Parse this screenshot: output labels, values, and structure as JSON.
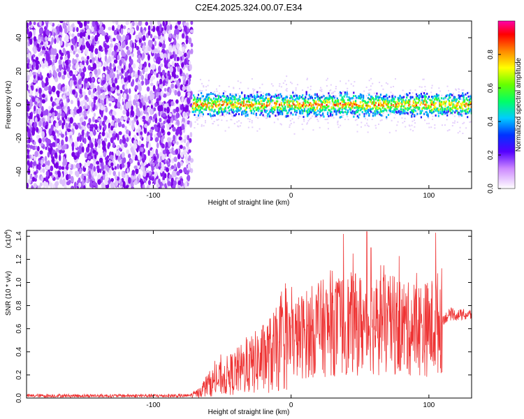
{
  "chart_data": [
    {
      "type": "heatmap",
      "title": "C2E4.2025.324.00.07.E34",
      "xlabel": "Height of straight line (km)",
      "ylabel": "Frequency (Hz)",
      "xlim": [
        -192,
        131
      ],
      "ylim": [
        -50,
        50
      ],
      "xticks": [
        -100,
        0,
        100
      ],
      "yticks": [
        -40,
        -20,
        0,
        20,
        40
      ],
      "colorbar": {
        "label": "Normalized spectral amplitude",
        "range": [
          0,
          1
        ],
        "ticks": [
          0.0,
          0.2,
          0.4,
          0.6,
          0.8
        ],
        "tick_labels": [
          "0.0",
          "0.2",
          "0.4",
          "0.6",
          "0.8"
        ]
      },
      "noise_region_x": [
        -192,
        -72
      ],
      "signal_start_x": -72,
      "signal_center_freq": 0,
      "signal_halfwidth_hz": 6
    },
    {
      "type": "line",
      "xlabel": "Height of straight line (km)",
      "ylabel": "SNR (10 * v/v)",
      "scale_label": "(x10",
      "scale_exp": "4",
      "scale_close": ")",
      "xlim": [
        -192,
        131
      ],
      "ylim": [
        0,
        1.45
      ],
      "xticks": [
        -100,
        0,
        100
      ],
      "yticks": [
        0.0,
        0.2,
        0.4,
        0.6,
        0.8,
        1.0,
        1.2,
        1.4
      ],
      "ytick_labels": [
        "0.0",
        "0.2",
        "0.4",
        "0.6",
        "0.8",
        "1.0",
        "1.2",
        "1.4"
      ],
      "color": "#ee3333",
      "trend": [
        {
          "x": -192,
          "y": 0.02
        },
        {
          "x": -75,
          "y": 0.02
        },
        {
          "x": -68,
          "y": 0.04
        },
        {
          "x": -60,
          "y": 0.12
        },
        {
          "x": -45,
          "y": 0.2
        },
        {
          "x": -30,
          "y": 0.28
        },
        {
          "x": -15,
          "y": 0.38
        },
        {
          "x": 0,
          "y": 0.5
        },
        {
          "x": 20,
          "y": 0.6
        },
        {
          "x": 40,
          "y": 0.64
        },
        {
          "x": 60,
          "y": 0.64
        },
        {
          "x": 80,
          "y": 0.62
        },
        {
          "x": 100,
          "y": 0.6
        },
        {
          "x": 115,
          "y": 0.72
        },
        {
          "x": 131,
          "y": 0.72
        }
      ],
      "peaks": [
        {
          "x": 38,
          "y": 1.42
        },
        {
          "x": 55,
          "y": 1.44
        },
        {
          "x": 58,
          "y": 1.3
        },
        {
          "x": 105,
          "y": 1.43
        },
        {
          "x": 65,
          "y": 1.15
        },
        {
          "x": 30,
          "y": 1.1
        },
        {
          "x": 45,
          "y": 1.25
        },
        {
          "x": 75,
          "y": 1.05
        },
        {
          "x": 85,
          "y": 1.0
        }
      ]
    }
  ]
}
